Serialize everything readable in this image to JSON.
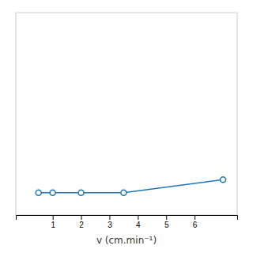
{
  "chart_data": {
    "type": "line",
    "x": [
      0.5,
      1.0,
      2.0,
      3.5,
      7.0
    ],
    "values": [
      0.11,
      0.11,
      0.11,
      0.11,
      0.175
    ],
    "xlim": [
      -0.3,
      7.5
    ],
    "ylim": [
      0,
      1.0
    ],
    "xticks": [
      1,
      2,
      3,
      4,
      5,
      6
    ],
    "xlabel": "v (cm.min⁻¹)",
    "marker": "circle",
    "tick_labels": "x",
    "grid": false
  }
}
